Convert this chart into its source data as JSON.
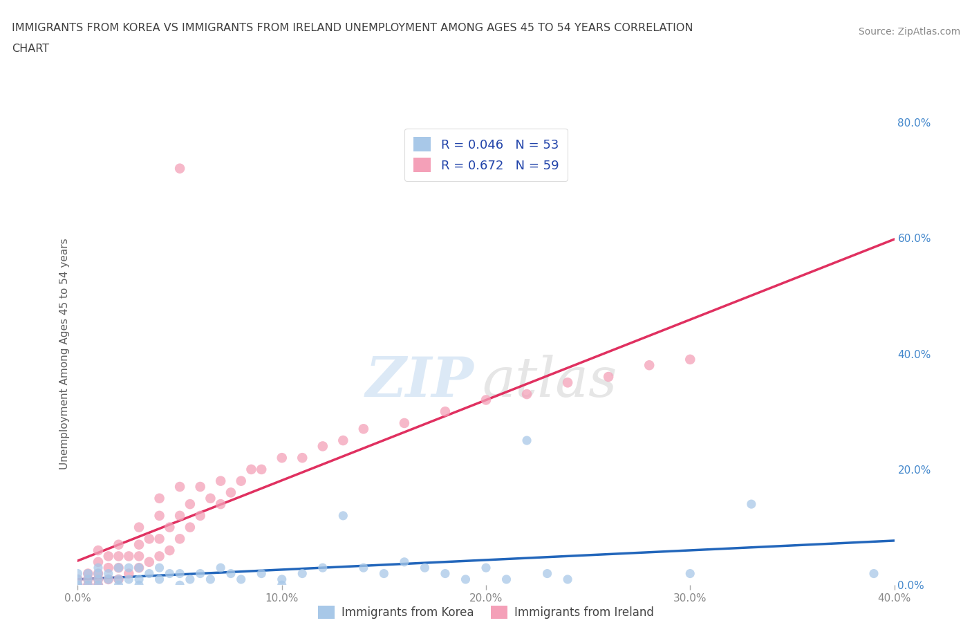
{
  "title_line1": "IMMIGRANTS FROM KOREA VS IMMIGRANTS FROM IRELAND UNEMPLOYMENT AMONG AGES 45 TO 54 YEARS CORRELATION",
  "title_line2": "CHART",
  "source_text": "Source: ZipAtlas.com",
  "ylabel": "Unemployment Among Ages 45 to 54 years",
  "xlim": [
    0.0,
    0.4
  ],
  "ylim": [
    0.0,
    0.8
  ],
  "xticks": [
    0.0,
    0.1,
    0.2,
    0.3,
    0.4
  ],
  "xticklabels": [
    "0.0%",
    "10.0%",
    "20.0%",
    "30.0%",
    "40.0%"
  ],
  "yticks": [
    0.0,
    0.2,
    0.4,
    0.6,
    0.8
  ],
  "yticklabels": [
    "0.0%",
    "20.0%",
    "40.0%",
    "60.0%",
    "80.0%"
  ],
  "korea_color": "#a8c8e8",
  "ireland_color": "#f4a0b8",
  "korea_R": 0.046,
  "korea_N": 53,
  "ireland_R": 0.672,
  "ireland_N": 59,
  "korea_line_color": "#2266bb",
  "ireland_line_color": "#e03060",
  "background_color": "#ffffff",
  "title_color": "#404040",
  "axis_label_color": "#606060",
  "tick_label_color": "#888888",
  "right_tick_color": "#4488cc",
  "legend_text_color": "#2244aa",
  "watermark_zip_color": "#c0d8f0",
  "watermark_atlas_color": "#c8c8c8"
}
